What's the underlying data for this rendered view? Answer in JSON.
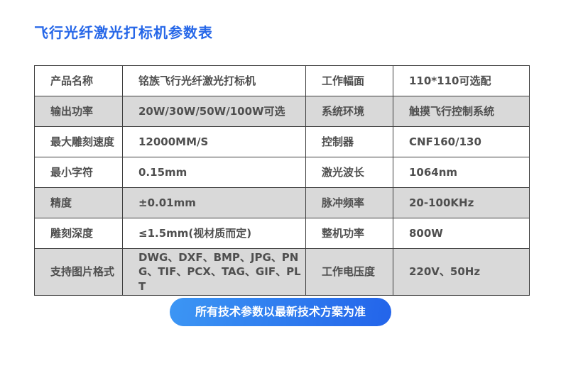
{
  "title": "飞行光纤激光打标机参数表",
  "footer": {
    "notice": "所有技术参数以最新技术方案为准"
  },
  "colors": {
    "title_text": "#2667e8",
    "shaded_row_background": "#d9d9d9",
    "table_border": "#3e3e3e",
    "cell_text": "#4f4f4f",
    "notice_gradient_start": "#3c96f4",
    "notice_gradient_end": "#2364ea",
    "notice_text": "#ffffff"
  },
  "table": {
    "rows": [
      {
        "label_left": "产品名称",
        "value_left": "铭族飞行光纤激光打标机",
        "label_right": "工作幅面",
        "value_right": "110*110可选配"
      },
      {
        "label_left": "输出功率",
        "value_left": "20W/30W/50W/100W可选",
        "label_right": "系统环境",
        "value_right": "触摸飞行控制系统"
      },
      {
        "label_left": "最大雕刻速度",
        "value_left": "12000MM/S",
        "label_right": "控制器",
        "value_right": "CNF160/130"
      },
      {
        "label_left": "最小字符",
        "value_left": "0.15mm",
        "label_right": "激光波长",
        "value_right": "1064nm"
      },
      {
        "label_left": "精度",
        "value_left": "±0.01mm",
        "label_right": "脉冲频率",
        "value_right": "20-100KHz"
      },
      {
        "label_left": "雕刻深度",
        "value_left": "≤1.5mm(视材质而定)",
        "label_right": "整机功率",
        "value_right": "800W"
      },
      {
        "label_left": "支持图片格式",
        "value_left": "DWG、DXF、BMP、JPG、PNG、TIF、PCX、TAG、GIF、PLT",
        "label_right": "工作电压度",
        "value_right": "220V、50Hz"
      }
    ]
  }
}
